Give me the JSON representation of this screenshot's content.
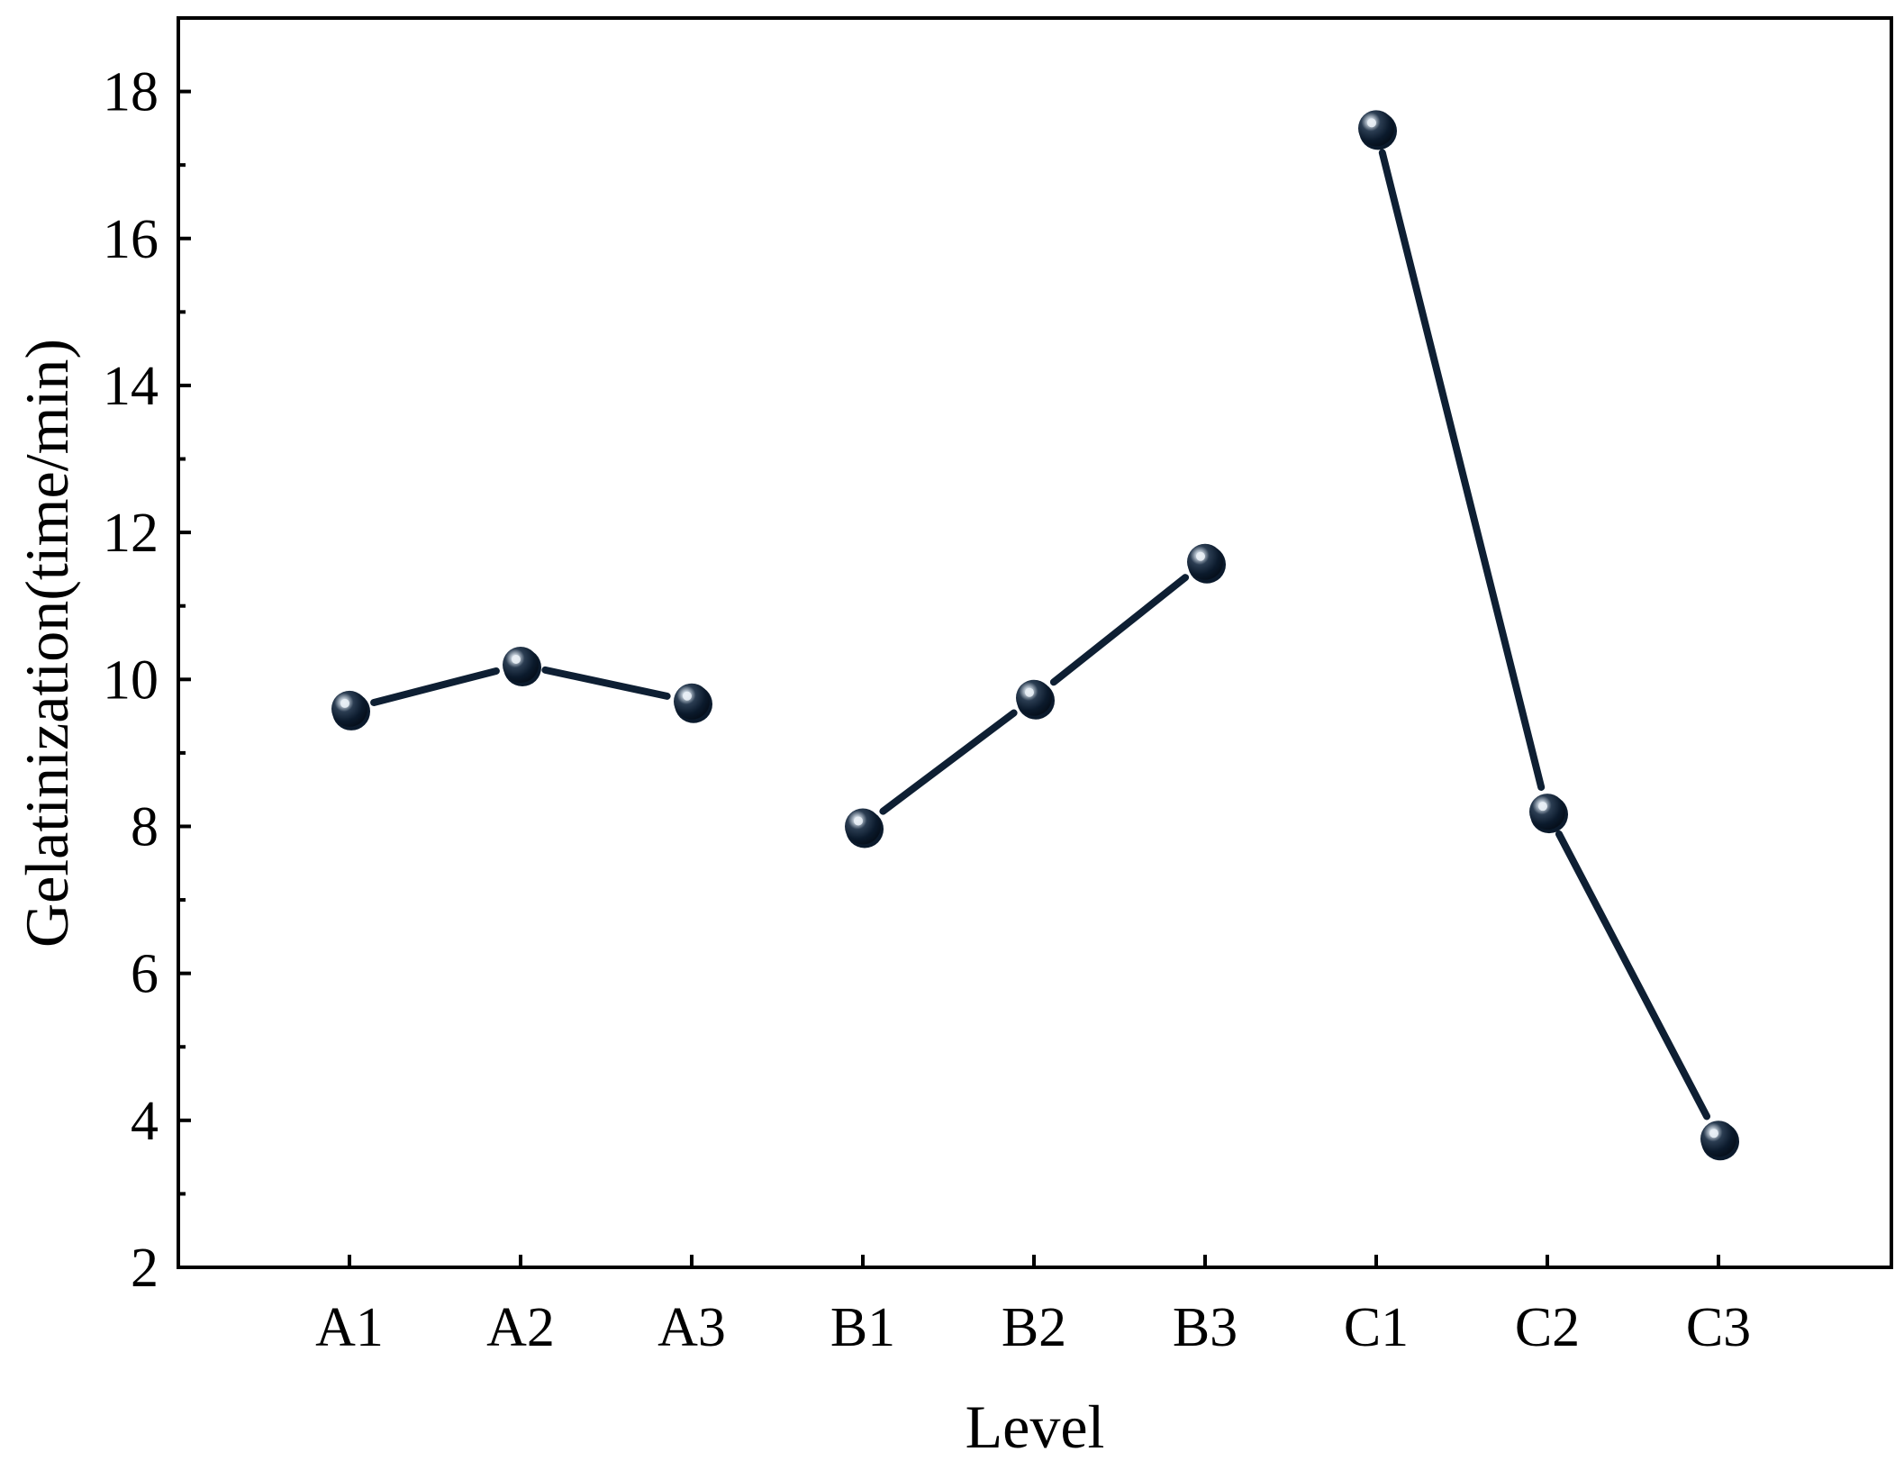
{
  "chart_data": {
    "type": "line",
    "title": "",
    "xlabel": "Level",
    "ylabel": "Gelatinization(time/min)",
    "categories": [
      "A1",
      "A2",
      "A3",
      "B1",
      "B2",
      "B3",
      "C1",
      "C2",
      "C3"
    ],
    "groups": [
      {
        "categories": [
          "A1",
          "A2",
          "A3"
        ],
        "values": [
          9.6,
          10.2,
          9.7
        ]
      },
      {
        "categories": [
          "B1",
          "B2",
          "B3"
        ],
        "values": [
          8.0,
          9.75,
          11.6
        ]
      },
      {
        "categories": [
          "C1",
          "C2",
          "C3"
        ],
        "values": [
          17.5,
          8.2,
          3.75
        ]
      }
    ],
    "ylim": [
      2,
      19
    ],
    "yticks": [
      2,
      4,
      6,
      8,
      10,
      12,
      14,
      16,
      18
    ],
    "yticks_minor": [
      3,
      5,
      7,
      9,
      11,
      13,
      15,
      17
    ],
    "grid": false,
    "legend": "none",
    "colors": {
      "line": "#0e1f33",
      "marker": "#0b1a2c",
      "highlight": "#e8eef5",
      "axis": "#000000"
    }
  }
}
